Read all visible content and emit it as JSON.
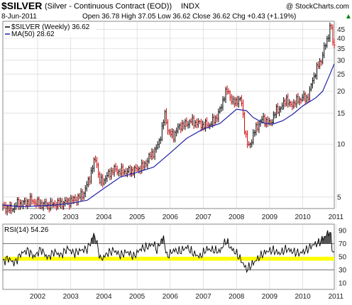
{
  "header": {
    "symbol": "$SILVER",
    "description": "(Silver - Continuous Contract (EOD))",
    "exchange": "INDX",
    "copyright": "@ StockCharts.com",
    "date": "8-Jun-2011",
    "ohlc": "Open 36.78  High 37.05  Low 36.62  Close 36.62  Chg +0.43 (+1.19%)",
    "ohlc_arrow": "▲"
  },
  "legend": {
    "price": "$SILVER (Weekly) 36.62",
    "ma": "MA(50) 28.62",
    "rsi": "RSI(14) 54.26"
  },
  "colors": {
    "price": "#000000",
    "down_bar": "#cc0000",
    "ma": "#2222aa",
    "rsi": "#000000",
    "rsi_fill": "#555555",
    "rsi_band": "#ffff00",
    "grid": "#d0d0d0"
  },
  "chart_data": [
    {
      "type": "line",
      "scale": "log",
      "ylim": [
        4.3,
        50
      ],
      "x_range": [
        2001.45,
        2011.45
      ],
      "x_ticks": [
        "2002",
        "2003",
        "2004",
        "2005",
        "2006",
        "2007",
        "2008",
        "2009",
        "2010",
        "2011"
      ],
      "y_ticks": [
        5,
        10,
        15,
        20,
        25,
        30,
        35,
        40,
        45
      ],
      "series": [
        {
          "name": "$SILVER (Weekly) 36.62",
          "x": [
            2001.45,
            2001.7,
            2001.9,
            2002.1,
            2002.3,
            2002.5,
            2002.8,
            2003.0,
            2003.2,
            2003.4,
            2003.7,
            2003.9,
            2004.05,
            2004.2,
            2004.28,
            2004.35,
            2004.45,
            2004.6,
            2004.8,
            2004.95,
            2005.1,
            2005.3,
            2005.5,
            2005.7,
            2005.9,
            2006.1,
            2006.2,
            2006.3,
            2006.35,
            2006.45,
            2006.6,
            2006.8,
            2006.95,
            2007.1,
            2007.3,
            2007.5,
            2007.7,
            2007.85,
            2008.0,
            2008.15,
            2008.25,
            2008.4,
            2008.55,
            2008.65,
            2008.75,
            2008.85,
            2008.95,
            2009.1,
            2009.3,
            2009.5,
            2009.7,
            2009.9,
            2010.0,
            2010.1,
            2010.3,
            2010.5,
            2010.6,
            2010.7,
            2010.8,
            2010.9,
            2011.0,
            2011.05,
            2011.15,
            2011.25,
            2011.3,
            2011.35,
            2011.4,
            2011.45
          ],
          "values": [
            4.4,
            4.25,
            4.6,
            4.6,
            4.8,
            4.6,
            4.5,
            4.55,
            4.6,
            4.7,
            4.9,
            5.3,
            6.3,
            7.9,
            8.2,
            6.2,
            6.1,
            6.6,
            7.2,
            7.0,
            7.0,
            7.0,
            7.2,
            7.5,
            8.6,
            9.5,
            11.0,
            13.5,
            15.0,
            11.5,
            11.2,
            12.8,
            12.9,
            13.5,
            13.2,
            12.8,
            13.0,
            13.8,
            15.5,
            19.5,
            20.0,
            17.0,
            18.0,
            17.5,
            12.0,
            9.5,
            10.5,
            12.5,
            14.0,
            13.0,
            15.5,
            16.5,
            18.5,
            16.5,
            17.5,
            18.5,
            18.0,
            19.5,
            23.5,
            26.0,
            29.0,
            30.0,
            35.0,
            40.0,
            45.0,
            48.0,
            38.0,
            36.62
          ]
        },
        {
          "name": "MA(50) 28.62",
          "x": [
            2001.45,
            2002.0,
            2002.5,
            2003.0,
            2003.5,
            2004.0,
            2004.5,
            2005.0,
            2005.5,
            2006.0,
            2006.5,
            2007.0,
            2007.5,
            2008.0,
            2008.5,
            2008.8,
            2009.0,
            2009.3,
            2009.6,
            2009.9,
            2010.2,
            2010.5,
            2010.7,
            2010.9,
            2011.1,
            2011.3,
            2011.45
          ],
          "values": [
            4.5,
            4.4,
            4.45,
            4.5,
            4.6,
            4.8,
            5.6,
            6.5,
            6.9,
            7.4,
            8.9,
            10.8,
            12.2,
            13.1,
            15.8,
            15.5,
            14.2,
            13.2,
            13.0,
            13.6,
            14.8,
            16.5,
            17.4,
            18.4,
            20.0,
            24.5,
            28.62
          ]
        }
      ]
    },
    {
      "type": "line",
      "ylim": [
        0,
        100
      ],
      "x_range": [
        2001.45,
        2011.45
      ],
      "x_ticks": [
        "2002",
        "2003",
        "2004",
        "2005",
        "2006",
        "2007",
        "2008",
        "2009",
        "2010",
        "2011"
      ],
      "y_ticks": [
        10,
        30,
        50,
        70,
        90
      ],
      "reference_lines": [
        30,
        70
      ],
      "highlight_band": [
        44,
        50
      ],
      "series": [
        {
          "name": "RSI(14) 54.26",
          "x": [
            2001.45,
            2001.6,
            2001.8,
            2002.0,
            2002.2,
            2002.4,
            2002.6,
            2002.8,
            2003.0,
            2003.2,
            2003.4,
            2003.6,
            2003.8,
            2004.0,
            2004.1,
            2004.2,
            2004.3,
            2004.4,
            2004.6,
            2004.8,
            2005.0,
            2005.2,
            2005.4,
            2005.6,
            2005.8,
            2006.0,
            2006.1,
            2006.2,
            2006.3,
            2006.4,
            2006.6,
            2006.8,
            2007.0,
            2007.2,
            2007.4,
            2007.6,
            2007.8,
            2008.0,
            2008.1,
            2008.2,
            2008.3,
            2008.5,
            2008.7,
            2008.8,
            2008.9,
            2009.0,
            2009.2,
            2009.4,
            2009.6,
            2009.8,
            2010.0,
            2010.2,
            2010.4,
            2010.6,
            2010.8,
            2011.0,
            2011.1,
            2011.2,
            2011.3,
            2011.35,
            2011.4,
            2011.45
          ],
          "values": [
            42,
            48,
            40,
            55,
            60,
            50,
            62,
            48,
            58,
            52,
            63,
            55,
            60,
            62,
            72,
            85,
            68,
            45,
            55,
            60,
            52,
            58,
            50,
            62,
            65,
            70,
            60,
            72,
            80,
            50,
            60,
            58,
            65,
            55,
            50,
            62,
            60,
            58,
            68,
            75,
            65,
            55,
            40,
            30,
            35,
            40,
            50,
            58,
            60,
            55,
            62,
            58,
            55,
            60,
            68,
            72,
            78,
            82,
            90,
            80,
            58,
            54.26
          ]
        }
      ]
    }
  ]
}
